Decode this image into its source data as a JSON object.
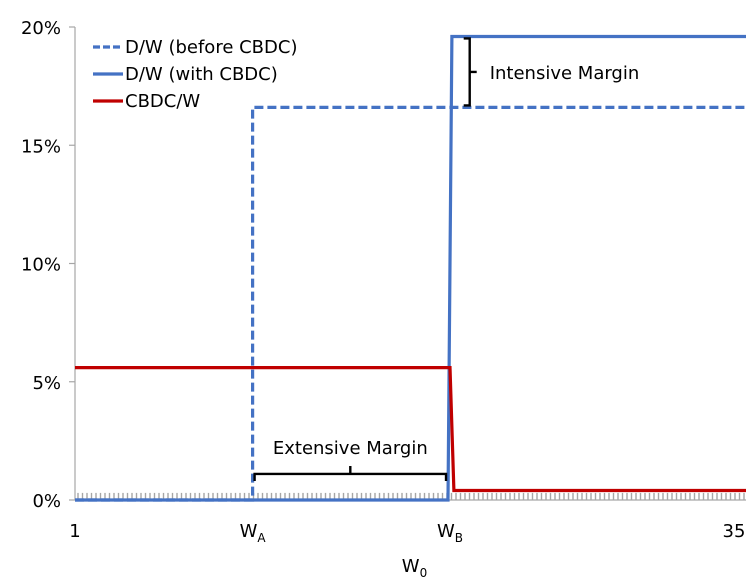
{
  "chart_data": {
    "type": "line",
    "title": "",
    "xlabel": "W",
    "xlabel_sub": "0",
    "ylabel": "",
    "ylim": [
      0,
      20
    ],
    "y_ticks": [
      "0%",
      "5%",
      "10%",
      "15%",
      "20%"
    ],
    "y_tick_values": [
      0,
      5,
      10,
      15,
      20
    ],
    "xlim": [
      1,
      35
    ],
    "x_ticks": [
      {
        "x": 1,
        "label": "1",
        "sub": ""
      },
      {
        "x": 10,
        "label": "W",
        "sub": "A"
      },
      {
        "x": 20,
        "label": "W",
        "sub": "B"
      },
      {
        "x": 35,
        "label": "35",
        "sub": ""
      }
    ],
    "grid": false,
    "legend_position": "top-left",
    "series": [
      {
        "name": "D/W (before CBDC)",
        "color": "#4472C4",
        "dash": "dashed",
        "points": [
          [
            1,
            0
          ],
          [
            10,
            0
          ],
          [
            10,
            16.6
          ],
          [
            35,
            16.6
          ]
        ]
      },
      {
        "name": "D/W (with CBDC)",
        "color": "#4472C4",
        "dash": "solid",
        "points": [
          [
            1,
            0
          ],
          [
            19.9,
            0
          ],
          [
            20.1,
            19.6
          ],
          [
            35,
            19.6
          ]
        ]
      },
      {
        "name": "CBDC/W",
        "color": "#C00000",
        "dash": "solid",
        "points": [
          [
            1,
            5.6
          ],
          [
            20,
            5.6
          ],
          [
            20.2,
            0.4
          ],
          [
            35,
            0.4
          ]
        ]
      }
    ],
    "floor_band": {
      "value": 0.3,
      "color": "#A6A6A6"
    },
    "annotations": [
      {
        "text": "Intensive Margin",
        "type": "vertical-brace",
        "x": 21,
        "y0": 16.6,
        "y1": 19.6
      },
      {
        "text": "Extensive Margin",
        "type": "horizontal-brace",
        "y": 1.1,
        "x0": 10.1,
        "x1": 19.8
      }
    ]
  }
}
